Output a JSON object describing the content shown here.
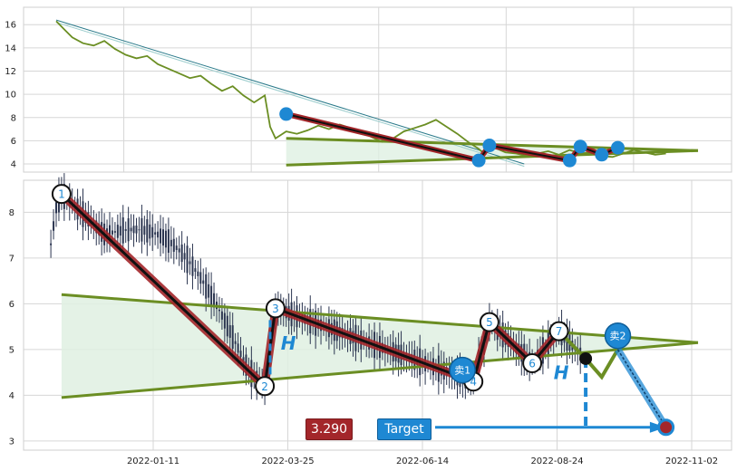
{
  "chart_data": [
    {
      "type": "line",
      "panel": "overview",
      "ylim": [
        3.3,
        17.5
      ],
      "yticks": [
        "4",
        "6",
        "8",
        "10",
        "12",
        "14",
        "16"
      ],
      "series": [
        {
          "values": [
            [
              0,
              16.3
            ],
            [
              3,
              15.6
            ],
            [
              6,
              14.9
            ],
            [
              10,
              14.4
            ],
            [
              14,
              14.2
            ],
            [
              18,
              14.6
            ],
            [
              22,
              13.9
            ],
            [
              26,
              13.4
            ],
            [
              30,
              13.1
            ],
            [
              34,
              13.3
            ],
            [
              38,
              12.6
            ],
            [
              42,
              12.2
            ],
            [
              46,
              11.8
            ],
            [
              50,
              11.4
            ],
            [
              54,
              11.6
            ],
            [
              58,
              10.9
            ],
            [
              62,
              10.3
            ],
            [
              66,
              10.7
            ],
            [
              70,
              9.9
            ],
            [
              74,
              9.3
            ],
            [
              78,
              9.9
            ],
            [
              80,
              7.2
            ],
            [
              82,
              6.2
            ],
            [
              84,
              6.5
            ],
            [
              86,
              6.8
            ],
            [
              90,
              6.6
            ],
            [
              94,
              6.9
            ],
            [
              98,
              7.3
            ],
            [
              102,
              7.0
            ],
            [
              106,
              7.4
            ],
            [
              110,
              7.1
            ],
            [
              114,
              6.8
            ],
            [
              118,
              6.3
            ],
            [
              122,
              5.9
            ],
            [
              126,
              6.2
            ],
            [
              130,
              6.8
            ],
            [
              134,
              7.1
            ],
            [
              138,
              7.4
            ],
            [
              142,
              7.8
            ],
            [
              146,
              7.2
            ],
            [
              150,
              6.6
            ],
            [
              154,
              5.9
            ],
            [
              158,
              5.3
            ],
            [
              160,
              4.9
            ],
            [
              162,
              5.8
            ],
            [
              164,
              5.4
            ],
            [
              168,
              5.0
            ],
            [
              172,
              4.9
            ],
            [
              176,
              4.7
            ],
            [
              180,
              4.9
            ],
            [
              184,
              5.1
            ],
            [
              188,
              4.8
            ],
            [
              192,
              5.2
            ],
            [
              196,
              4.9
            ],
            [
              200,
              5.0
            ],
            [
              204,
              4.7
            ],
            [
              208,
              4.6
            ],
            [
              212,
              4.9
            ],
            [
              216,
              5.2
            ],
            [
              220,
              5.0
            ],
            [
              224,
              4.8
            ],
            [
              228,
              4.9
            ]
          ]
        }
      ],
      "pattern_points": [
        [
          86,
          8.3
        ],
        [
          158,
          4.3
        ],
        [
          162,
          5.6
        ],
        [
          192,
          4.3
        ],
        [
          196,
          5.5
        ],
        [
          204,
          4.8
        ],
        [
          210,
          5.4
        ]
      ],
      "triangle_upper": [
        [
          86,
          6.2
        ],
        [
          240,
          5.15
        ]
      ],
      "triangle_lower": [
        [
          86,
          3.9
        ],
        [
          240,
          5.15
        ]
      ],
      "trend_line": [
        [
          0,
          16.4
        ],
        [
          175,
          4.0
        ]
      ]
    },
    {
      "type": "candlestick",
      "panel": "detail",
      "ylim": [
        2.8,
        8.7
      ],
      "yticks": [
        "3",
        "4",
        "5",
        "6",
        "7",
        "8"
      ],
      "xticks": [
        "2022-01-11",
        "2022-03-25",
        "2022-06-14",
        "2022-08-24",
        "2022-11-02"
      ],
      "current_price": "3.290",
      "target_label": "Target",
      "h_label": "H",
      "sell_labels": [
        "卖1",
        "卖2"
      ],
      "pivots": [
        {
          "label": "1",
          "x": 2,
          "y": 8.4
        },
        {
          "label": "2",
          "x": 78,
          "y": 4.2
        },
        {
          "label": "3",
          "x": 82,
          "y": 5.9
        },
        {
          "label": "4",
          "x": 156,
          "y": 4.3
        },
        {
          "label": "5",
          "x": 162,
          "y": 5.6
        },
        {
          "label": "6",
          "x": 178,
          "y": 4.7
        },
        {
          "label": "7",
          "x": 188,
          "y": 5.4
        }
      ],
      "projection": [
        [
          198,
          4.8
        ],
        [
          204,
          4.4
        ],
        [
          210,
          5.0
        ],
        [
          228,
          3.3
        ]
      ],
      "triangle_upper": [
        [
          2,
          6.2
        ],
        [
          240,
          5.15
        ]
      ],
      "triangle_lower": [
        [
          2,
          3.95
        ],
        [
          240,
          5.15
        ]
      ]
    }
  ]
}
